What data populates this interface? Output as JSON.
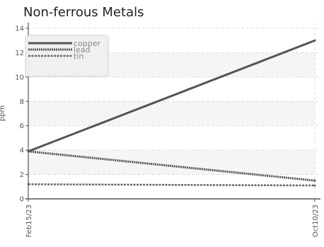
{
  "chart_data": {
    "type": "line",
    "title": "Non-ferrous Metals",
    "ylabel": "ppm",
    "xlabel": "",
    "x": [
      "Feb15/23",
      "Oct10/23"
    ],
    "ylim": [
      0,
      14
    ],
    "yticks": [
      0,
      2,
      4,
      6,
      8,
      10,
      12,
      14
    ],
    "grid": true,
    "legend_position": "top-left",
    "series": [
      {
        "name": "copper",
        "values": [
          3.9,
          13.0
        ],
        "style": "solid",
        "color": "#555555"
      },
      {
        "name": "lead",
        "values": [
          3.9,
          1.5
        ],
        "style": "dotted",
        "color": "#555555"
      },
      {
        "name": "tin",
        "values": [
          1.2,
          1.1
        ],
        "style": "dashed",
        "color": "#666666"
      }
    ]
  }
}
